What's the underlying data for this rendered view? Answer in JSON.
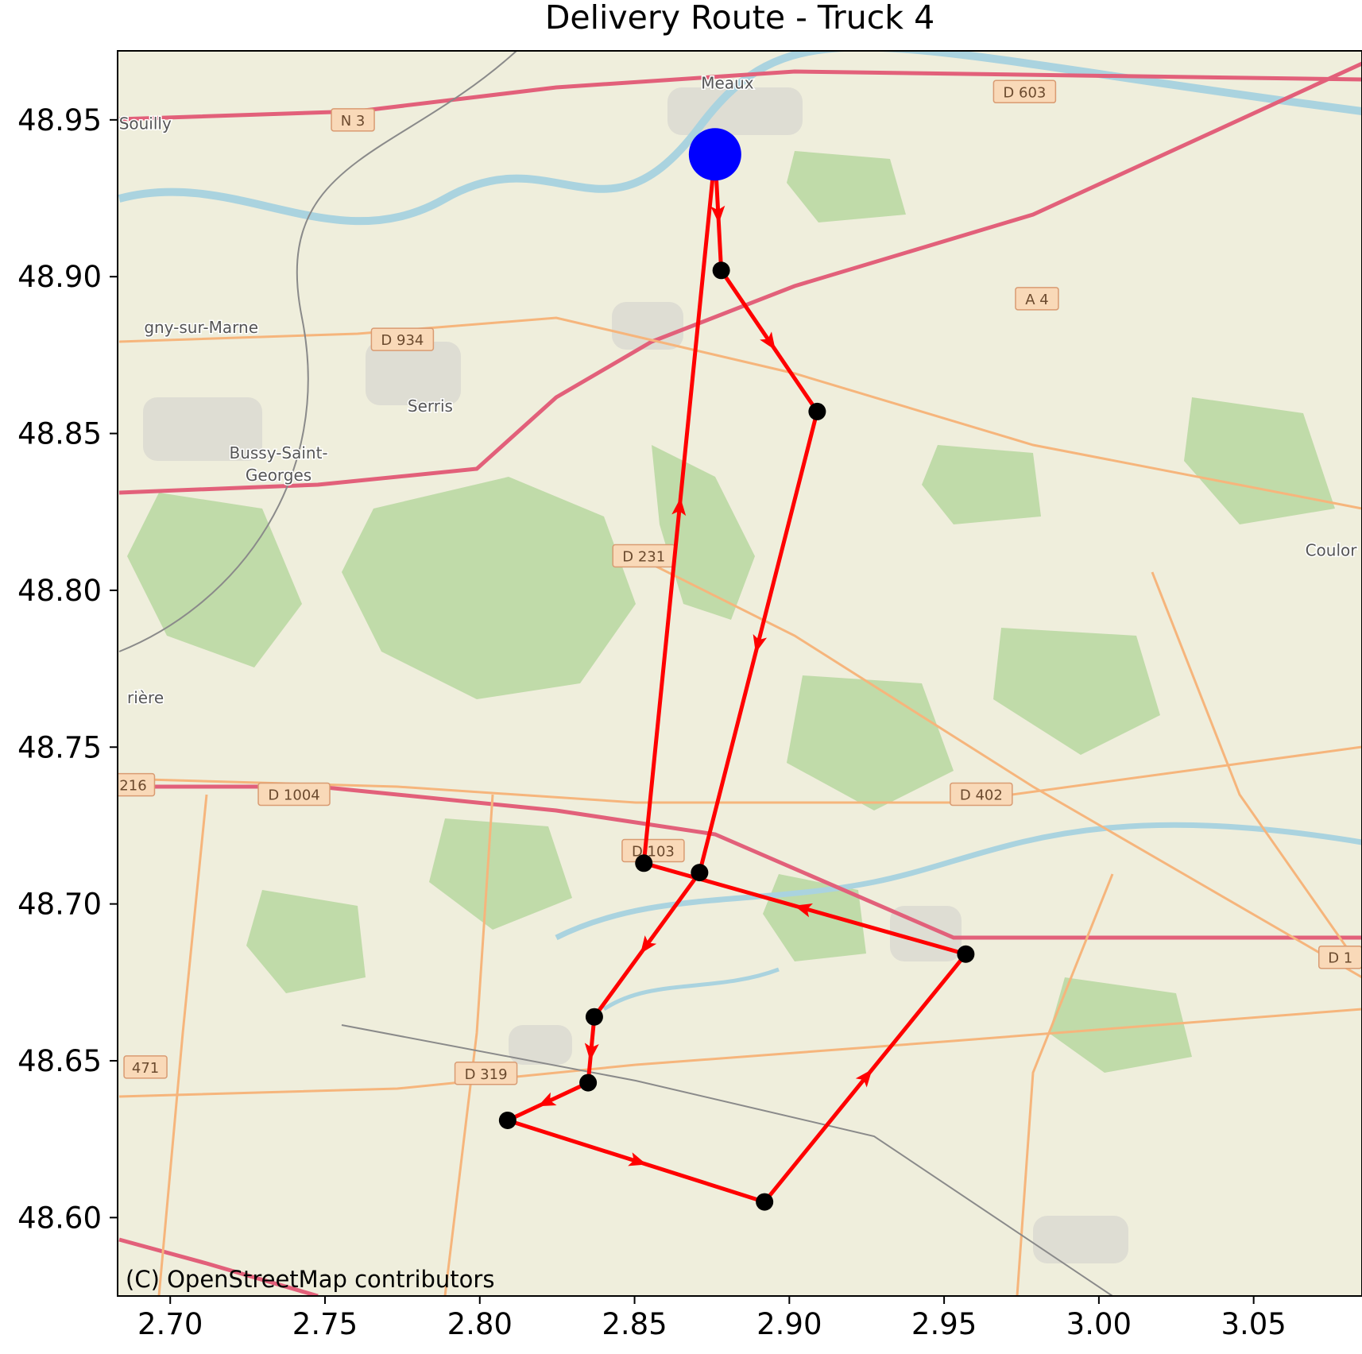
{
  "title": "Delivery Route - Truck 4",
  "attribution": "(C) OpenStreetMap contributors",
  "chart_data": {
    "type": "line",
    "title": "Delivery Route - Truck 4",
    "xlabel": "",
    "ylabel": "",
    "xlim": [
      2.683,
      3.085
    ],
    "ylim": [
      48.575,
      48.972
    ],
    "x_ticks": [
      {
        "value": 2.7,
        "label": "2.70"
      },
      {
        "value": 2.75,
        "label": "2.75"
      },
      {
        "value": 2.8,
        "label": "2.80"
      },
      {
        "value": 2.85,
        "label": "2.85"
      },
      {
        "value": 2.9,
        "label": "2.90"
      },
      {
        "value": 2.95,
        "label": "2.95"
      },
      {
        "value": 3.0,
        "label": "3.00"
      },
      {
        "value": 3.05,
        "label": "3.05"
      }
    ],
    "y_ticks": [
      {
        "value": 48.95,
        "label": "48.95"
      },
      {
        "value": 48.9,
        "label": "48.90"
      },
      {
        "value": 48.85,
        "label": "48.85"
      },
      {
        "value": 48.8,
        "label": "48.80"
      },
      {
        "value": 48.75,
        "label": "48.75"
      },
      {
        "value": 48.7,
        "label": "48.70"
      },
      {
        "value": 48.65,
        "label": "48.65"
      },
      {
        "value": 48.6,
        "label": "48.60"
      }
    ],
    "grid": false,
    "depot": {
      "x": 2.876,
      "y": 48.939,
      "color": "#0000ff"
    },
    "route_color": "#ff0000",
    "stop_color": "#000000",
    "route": [
      {
        "x": 2.876,
        "y": 48.939
      },
      {
        "x": 2.878,
        "y": 48.902
      },
      {
        "x": 2.909,
        "y": 48.857
      },
      {
        "x": 2.871,
        "y": 48.71
      },
      {
        "x": 2.837,
        "y": 48.664
      },
      {
        "x": 2.835,
        "y": 48.643
      },
      {
        "x": 2.809,
        "y": 48.631
      },
      {
        "x": 2.892,
        "y": 48.605
      },
      {
        "x": 2.957,
        "y": 48.684
      },
      {
        "x": 2.853,
        "y": 48.713
      },
      {
        "x": 2.876,
        "y": 48.939
      }
    ]
  },
  "basemap": {
    "background": "#efeedc",
    "forest_color": "#b7d7a0",
    "water_color": "#aad3df",
    "urban_color": "#dcdad2",
    "motorway_color": "#e2607a",
    "primary_color": "#f6b57c",
    "place_labels": [
      {
        "text": "Meaux",
        "x": 2.88,
        "y": 48.96
      },
      {
        "text": "-Souilly",
        "x": 2.691,
        "y": 48.947
      },
      {
        "text": "gny-sur-Marne",
        "x": 2.71,
        "y": 48.882
      },
      {
        "text": "Serris",
        "x": 2.784,
        "y": 48.857
      },
      {
        "text": "Bussy-Saint-",
        "x": 2.735,
        "y": 48.842
      },
      {
        "text": "Georges",
        "x": 2.735,
        "y": 48.835
      },
      {
        "text": "rière",
        "x": 2.692,
        "y": 48.764
      },
      {
        "text": "Coulor",
        "x": 3.075,
        "y": 48.811
      }
    ],
    "road_labels": [
      {
        "text": "N 3",
        "x": 2.759,
        "y": 48.95
      },
      {
        "text": "D 603",
        "x": 2.976,
        "y": 48.959
      },
      {
        "text": "A 4",
        "x": 2.98,
        "y": 48.893
      },
      {
        "text": "D 934",
        "x": 2.775,
        "y": 48.88
      },
      {
        "text": "D 231",
        "x": 2.853,
        "y": 48.811
      },
      {
        "text": "D 1004",
        "x": 2.74,
        "y": 48.735
      },
      {
        "text": "D 402",
        "x": 2.962,
        "y": 48.735
      },
      {
        "text": "D 103",
        "x": 2.856,
        "y": 48.717
      },
      {
        "text": "D 319",
        "x": 2.802,
        "y": 48.646
      },
      {
        "text": "471",
        "x": 2.692,
        "y": 48.648
      },
      {
        "text": "216",
        "x": 2.688,
        "y": 48.738
      },
      {
        "text": "D 1",
        "x": 3.078,
        "y": 48.683
      }
    ]
  }
}
